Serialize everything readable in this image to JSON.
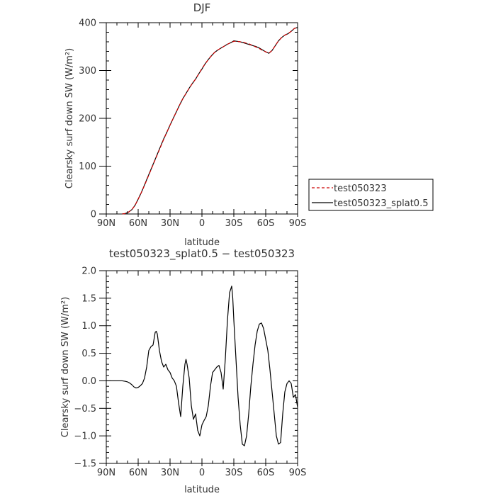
{
  "chart_data": [
    {
      "type": "line",
      "title": "DJF",
      "xlabel": "latitude",
      "ylabel": "Clearsky surf down SW (W/m²)",
      "xlim": [
        90,
        -90
      ],
      "ylim": [
        0,
        400
      ],
      "x_ticks": [
        90,
        60,
        30,
        0,
        -30,
        -60,
        -90
      ],
      "x_tick_labels": [
        "90N",
        "60N",
        "30N",
        "0",
        "30S",
        "60S",
        "90S"
      ],
      "y_ticks": [
        0,
        100,
        200,
        300,
        400
      ],
      "y_tick_labels": [
        "0",
        "100",
        "200",
        "300",
        "400"
      ],
      "series": [
        {
          "name": "test050323",
          "color": "#cc0000",
          "dash": "dashed",
          "x": [
            75,
            72,
            69,
            66,
            63,
            60,
            57,
            54,
            51,
            48,
            45,
            42,
            39,
            36,
            33,
            30,
            27,
            24,
            21,
            18,
            15,
            12,
            9,
            6,
            3,
            0,
            -3,
            -6,
            -9,
            -12,
            -15,
            -18,
            -21,
            -24,
            -27,
            -30,
            -33,
            -36,
            -39,
            -42,
            -45,
            -48,
            -51,
            -54,
            -57,
            -60,
            -63,
            -66,
            -69,
            -72,
            -75,
            -78,
            -81,
            -84,
            -87,
            -90
          ],
          "values": [
            0,
            1,
            4,
            9,
            18,
            31,
            45,
            60,
            76,
            92,
            108,
            124,
            140,
            156,
            171,
            186,
            200,
            214,
            228,
            241,
            252,
            263,
            273,
            282,
            293,
            304,
            314,
            323,
            331,
            338,
            343,
            347,
            351,
            355,
            358,
            361,
            361,
            360,
            359,
            357,
            355,
            352,
            349,
            346,
            342,
            339,
            336,
            342,
            352,
            362,
            369,
            374,
            377,
            382,
            388,
            390
          ]
        },
        {
          "name": "test050323_splat0.5",
          "color": "#000000",
          "dash": "solid",
          "x": [
            75,
            72,
            69,
            66,
            63,
            60,
            57,
            54,
            51,
            48,
            45,
            42,
            39,
            36,
            33,
            30,
            27,
            24,
            21,
            18,
            15,
            12,
            9,
            6,
            3,
            0,
            -3,
            -6,
            -9,
            -12,
            -15,
            -18,
            -21,
            -24,
            -27,
            -30,
            -33,
            -36,
            -39,
            -42,
            -45,
            -48,
            -51,
            -54,
            -57,
            -60,
            -63,
            -66,
            -69,
            -72,
            -75,
            -78,
            -81,
            -84,
            -87,
            -90
          ],
          "values": [
            0,
            1,
            4,
            9,
            18,
            31,
            45,
            61,
            77,
            93,
            109,
            125,
            141,
            157,
            171,
            186,
            200,
            214,
            228,
            241,
            252,
            263,
            273,
            282,
            293,
            303,
            314,
            323,
            331,
            338,
            343,
            347,
            351,
            355,
            358,
            362,
            361,
            360,
            358,
            356,
            354,
            352,
            350,
            347,
            343,
            339,
            336,
            342,
            352,
            362,
            369,
            374,
            377,
            382,
            388,
            390
          ]
        }
      ],
      "legend": "right"
    },
    {
      "type": "line",
      "title": "test050323_splat0.5 − test050323",
      "xlabel": "latitude",
      "ylabel": "Clearsky surf down SW (W/m²)",
      "xlim": [
        90,
        -90
      ],
      "ylim": [
        -1.5,
        2.0
      ],
      "x_ticks": [
        90,
        60,
        30,
        0,
        -30,
        -60,
        -90
      ],
      "x_tick_labels": [
        "90N",
        "60N",
        "30N",
        "0",
        "30S",
        "60S",
        "90S"
      ],
      "y_ticks": [
        -1.5,
        -1.0,
        -0.5,
        0.0,
        0.5,
        1.0,
        1.5,
        2.0
      ],
      "y_tick_labels": [
        "−1.5",
        "−1.0",
        "−0.5",
        "0.0",
        "0.5",
        "1.0",
        "1.5",
        "2.0"
      ],
      "series": [
        {
          "name": "",
          "color": "#000000",
          "dash": "solid",
          "x": [
            90,
            80,
            75,
            72,
            70,
            68,
            66,
            64,
            62,
            60,
            58,
            56,
            54,
            52,
            50,
            48,
            46,
            44,
            43,
            42,
            40,
            38,
            36,
            34,
            32,
            30,
            28,
            26,
            24,
            22,
            20,
            18,
            16,
            15,
            14,
            12,
            10,
            8,
            6,
            4,
            2,
            0,
            -2,
            -4,
            -6,
            -8,
            -10,
            -12,
            -14,
            -16,
            -18,
            -20,
            -22,
            -24,
            -26,
            -28,
            -29,
            -30,
            -32,
            -34,
            -36,
            -38,
            -40,
            -42,
            -44,
            -46,
            -48,
            -50,
            -52,
            -54,
            -56,
            -58,
            -60,
            -62,
            -64,
            -66,
            -68,
            -70,
            -72,
            -74,
            -76,
            -78,
            -80,
            -82,
            -84,
            -86,
            -88,
            -90
          ],
          "values": [
            0,
            0,
            0,
            -0.01,
            -0.02,
            -0.04,
            -0.07,
            -0.11,
            -0.13,
            -0.12,
            -0.09,
            -0.05,
            0.05,
            0.25,
            0.55,
            0.62,
            0.65,
            0.88,
            0.9,
            0.85,
            0.55,
            0.35,
            0.25,
            0.3,
            0.2,
            0.15,
            0.05,
            0.0,
            -0.1,
            -0.4,
            -0.65,
            -0.1,
            0.3,
            0.39,
            0.3,
            0.05,
            -0.45,
            -0.7,
            -0.6,
            -0.9,
            -1.0,
            -0.8,
            -0.72,
            -0.65,
            -0.45,
            -0.1,
            0.15,
            0.2,
            0.25,
            0.28,
            0.15,
            -0.15,
            0.4,
            1.1,
            1.6,
            1.72,
            1.5,
            1.1,
            0.4,
            -0.3,
            -0.8,
            -1.15,
            -1.18,
            -1.0,
            -0.6,
            -0.1,
            0.3,
            0.65,
            0.9,
            1.03,
            1.05,
            0.95,
            0.75,
            0.55,
            0.2,
            -0.2,
            -0.6,
            -1.0,
            -1.15,
            -1.12,
            -0.6,
            -0.2,
            -0.05,
            0.0,
            -0.05,
            -0.3,
            -0.25,
            -0.48
          ]
        }
      ]
    }
  ]
}
